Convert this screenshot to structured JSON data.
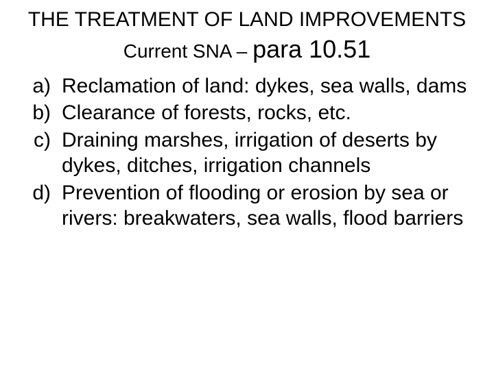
{
  "title": "THE TREATMENT OF LAND IMPROVEMENTS",
  "subtitle_small": "Current SNA – ",
  "subtitle_large": "para 10.51",
  "items": [
    {
      "marker": "a)",
      "text": "Reclamation of land: dykes, sea walls, dams"
    },
    {
      "marker": "b)",
      "text": "Clearance of forests, rocks, etc."
    },
    {
      "marker": "c)",
      "text": "Draining marshes, irrigation of deserts by dykes, ditches, irrigation channels"
    },
    {
      "marker": "d)",
      "text": "Prevention of flooding or erosion by sea or rivers: breakwaters, sea walls, flood barriers"
    }
  ],
  "colors": {
    "bg": "#ffffff",
    "text": "#000000"
  },
  "fontsize": {
    "title": 30,
    "sub_small": 28,
    "sub_large": 36,
    "body": 30
  }
}
